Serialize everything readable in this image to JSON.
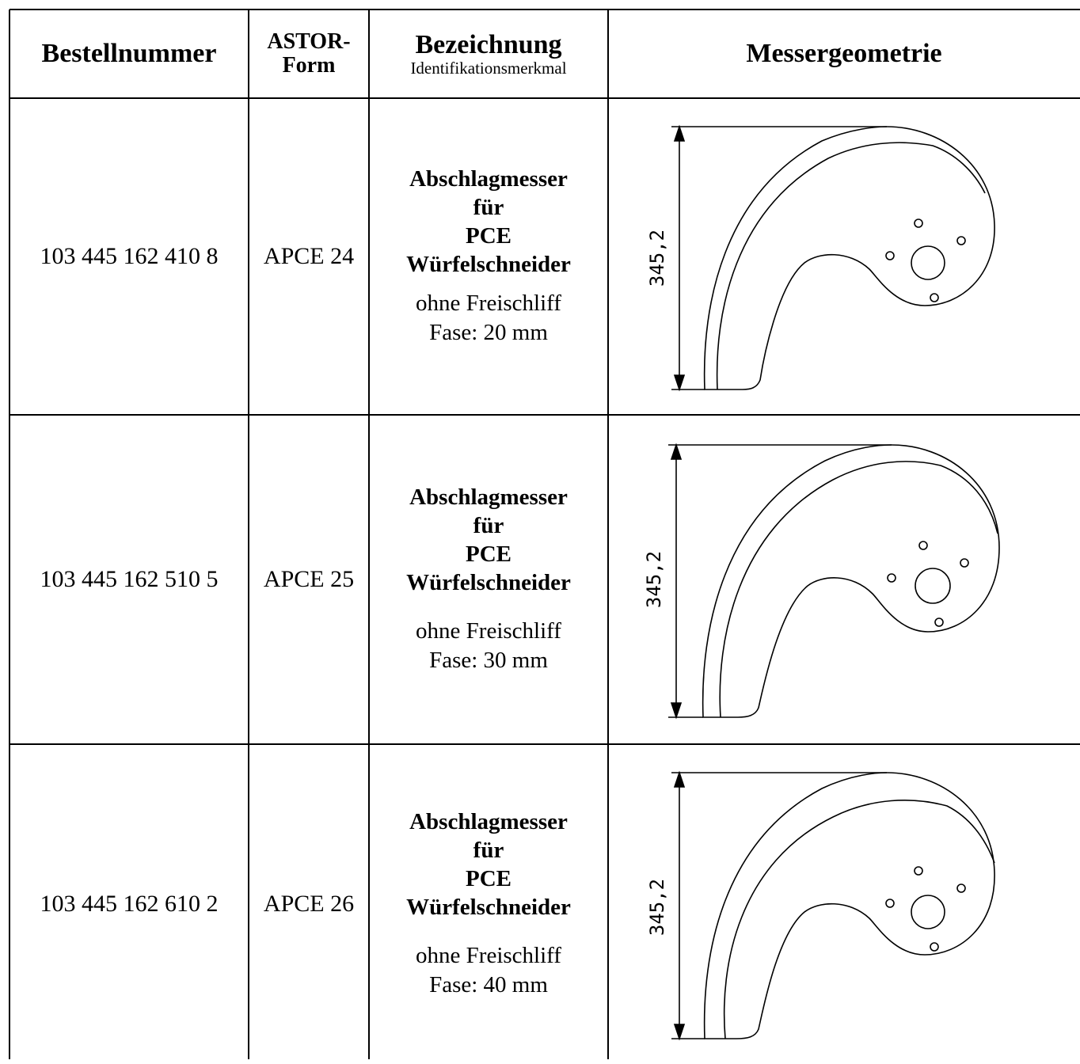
{
  "header": {
    "order_number": "Bestellnummer",
    "astor_form": [
      "ASTOR-",
      "Form"
    ],
    "designation": "Bezeichnung",
    "designation_sub": "Identifikationsmerkmal",
    "geometry": "Messergeometrie"
  },
  "rows": [
    {
      "order_number": "103 445 162 410 8",
      "form": "APCE 24",
      "title_lines": [
        "Abschlagmesser",
        "für",
        "PCE",
        "Würfelschneider"
      ],
      "note_lines": [
        "ohne Freischliff",
        "Fase: 20 mm"
      ],
      "dimension": "345,2"
    },
    {
      "order_number": "103 445 162 510 5",
      "form": "APCE 25",
      "title_lines": [
        "Abschlagmesser",
        "für",
        "PCE",
        "Würfelschneider"
      ],
      "note_lines": [
        "ohne Freischliff",
        "Fase: 30 mm"
      ],
      "dimension": "345,2"
    },
    {
      "order_number": "103 445 162 610 2",
      "form": "APCE 26",
      "title_lines": [
        "Abschlagmesser",
        "für",
        "PCE",
        "Würfelschneider"
      ],
      "note_lines": [
        "ohne Freischliff",
        "Fase: 40 mm"
      ],
      "dimension": "345,2"
    }
  ]
}
